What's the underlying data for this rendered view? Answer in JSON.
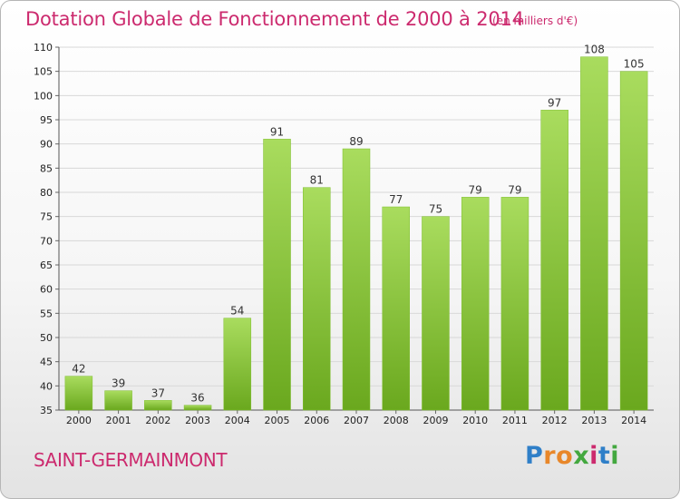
{
  "title": "Dotation Globale de Fonctionnement de 2000 à 2014",
  "unit_note": "(en milliers d'€)",
  "commune": "SAINT-GERMAINMONT",
  "logo": {
    "text": "Proxiti",
    "letter_colors": [
      "#2f7fc8",
      "#e8872a",
      "#e8872a",
      "#43a83f",
      "#cc2a6e",
      "#2f7fc8",
      "#43a83f"
    ]
  },
  "colors": {
    "bar_light": "#a9dc5e",
    "bar_dark": "#6aa81e",
    "title": "#cc2a6e"
  },
  "chart_data": {
    "type": "bar",
    "title": "Dotation Globale de Fonctionnement de 2000 à 2014",
    "subtitle": "(en milliers d'€)",
    "categories": [
      "2000",
      "2001",
      "2002",
      "2003",
      "2004",
      "2005",
      "2006",
      "2007",
      "2008",
      "2009",
      "2010",
      "2011",
      "2012",
      "2013",
      "2014"
    ],
    "values": [
      42,
      39,
      37,
      36,
      54,
      91,
      81,
      89,
      77,
      75,
      79,
      79,
      97,
      108,
      105
    ],
    "ylim": [
      35,
      110
    ],
    "yticks": [
      35,
      40,
      45,
      50,
      55,
      60,
      65,
      70,
      75,
      80,
      85,
      90,
      95,
      100,
      105,
      110
    ],
    "grid": true,
    "xlabel": "",
    "ylabel": ""
  }
}
